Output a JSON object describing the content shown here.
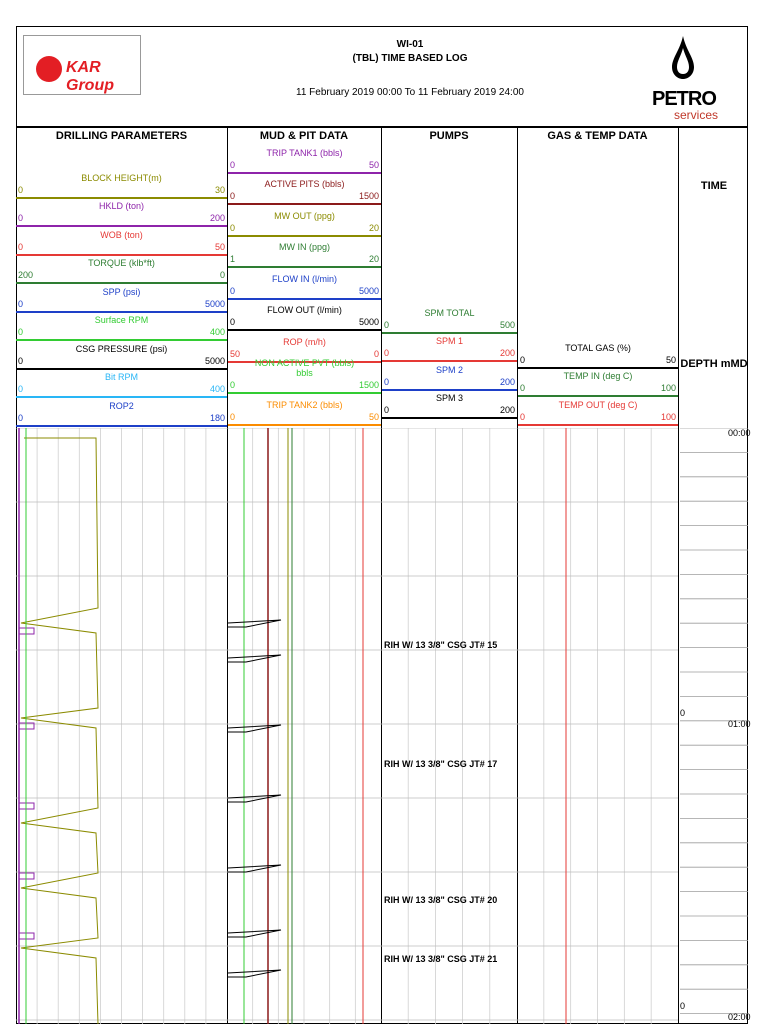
{
  "header": {
    "well": "WI-01",
    "log_type": "(TBL) TIME BASED LOG",
    "date_range": "11 February 2019 00:00 To 11 February 2019 24:00",
    "left_logo_text": "KAR Group",
    "right_logo_main": "PETRO",
    "right_logo_sub": "services"
  },
  "columns": {
    "drilling": "DRILLING PARAMETERS",
    "mud": "MUD & PIT DATA",
    "pumps": "PUMPS",
    "gas": "GAS & TEMP DATA",
    "time": "TIME",
    "depth": "DEPTH mMD"
  },
  "drilling_tracks": [
    {
      "name": "BLOCK HEIGHT(m)",
      "lo": "0",
      "hi": "30",
      "color": "#8b8b00"
    },
    {
      "name": "HKLD (ton)",
      "lo": "0",
      "hi": "200",
      "color": "#8e24aa"
    },
    {
      "name": "WOB (ton)",
      "lo": "0",
      "hi": "50",
      "color": "#e53935"
    },
    {
      "name": "TORQUE (klb*ft)",
      "lo": "200",
      "hi": "0",
      "color": "#2e7d32"
    },
    {
      "name": "SPP (psi)",
      "lo": "0",
      "hi": "5000",
      "color": "#1e40c8"
    },
    {
      "name": "Surface RPM",
      "lo": "0",
      "hi": "400",
      "color": "#33cc33"
    },
    {
      "name": "CSG PRESSURE (psi)",
      "lo": "0",
      "hi": "5000",
      "color": "#000000"
    },
    {
      "name": "Bit RPM",
      "lo": "0",
      "hi": "400",
      "color": "#29b6f6"
    },
    {
      "name": "ROP2",
      "lo": "0",
      "hi": "180",
      "color": "#1e40c8"
    }
  ],
  "mud_tracks": [
    {
      "name": "TRIP TANK1 (bbls)",
      "lo": "0",
      "hi": "50",
      "color": "#8e24aa"
    },
    {
      "name": "ACTIVE PITS (bbls)",
      "lo": "0",
      "hi": "1500",
      "color": "#8b1a1a"
    },
    {
      "name": "MW OUT (ppg)",
      "lo": "0",
      "hi": "20",
      "color": "#8b8b00"
    },
    {
      "name": "MW IN (ppg)",
      "lo": "1",
      "hi": "20",
      "color": "#2e7d32"
    },
    {
      "name": "FLOW IN (l/min)",
      "lo": "0",
      "hi": "5000",
      "color": "#1e40c8"
    },
    {
      "name": "FLOW OUT (l/min)",
      "lo": "0",
      "hi": "5000",
      "color": "#000000"
    },
    {
      "name": "ROP (m/h)",
      "lo": "50",
      "hi": "0",
      "color": "#e53935"
    },
    {
      "name": "NON ACTIVE PVT (bbls)",
      "name2": "bbls",
      "lo": "0",
      "hi": "1500",
      "color": "#33cc33"
    },
    {
      "name": "TRIP TANK2 (bbls)",
      "lo": "0",
      "hi": "50",
      "color": "#fb8c00"
    }
  ],
  "pump_tracks": [
    {
      "name": "SPM TOTAL",
      "lo": "0",
      "hi": "500",
      "color": "#2e7d32"
    },
    {
      "name": "SPM 1",
      "lo": "0",
      "hi": "200",
      "color": "#e53935"
    },
    {
      "name": "SPM 2",
      "lo": "0",
      "hi": "200",
      "color": "#1e40c8"
    },
    {
      "name": "SPM 3",
      "lo": "0",
      "hi": "200",
      "color": "#000000"
    }
  ],
  "gas_tracks": [
    {
      "name": "TOTAL GAS (%)",
      "lo": "0",
      "hi": "50",
      "color": "#000000"
    },
    {
      "name": "TEMP IN (deg C)",
      "lo": "0",
      "hi": "100",
      "color": "#2e7d32"
    },
    {
      "name": "TEMP OUT (deg C)",
      "lo": "0",
      "hi": "100",
      "color": "#e53935"
    }
  ],
  "annotations": [
    "RIH W/ 13 3/8\" CSG JT# 15",
    "RIH W/ 13 3/8\" CSG JT# 17",
    "RIH W/ 13 3/8\" CSG JT# 20",
    "RIH W/ 13 3/8\" CSG JT# 21"
  ],
  "time_ticks": [
    "00:00",
    "01:00",
    "02:00"
  ],
  "depth_marks": [
    "0",
    "0"
  ]
}
